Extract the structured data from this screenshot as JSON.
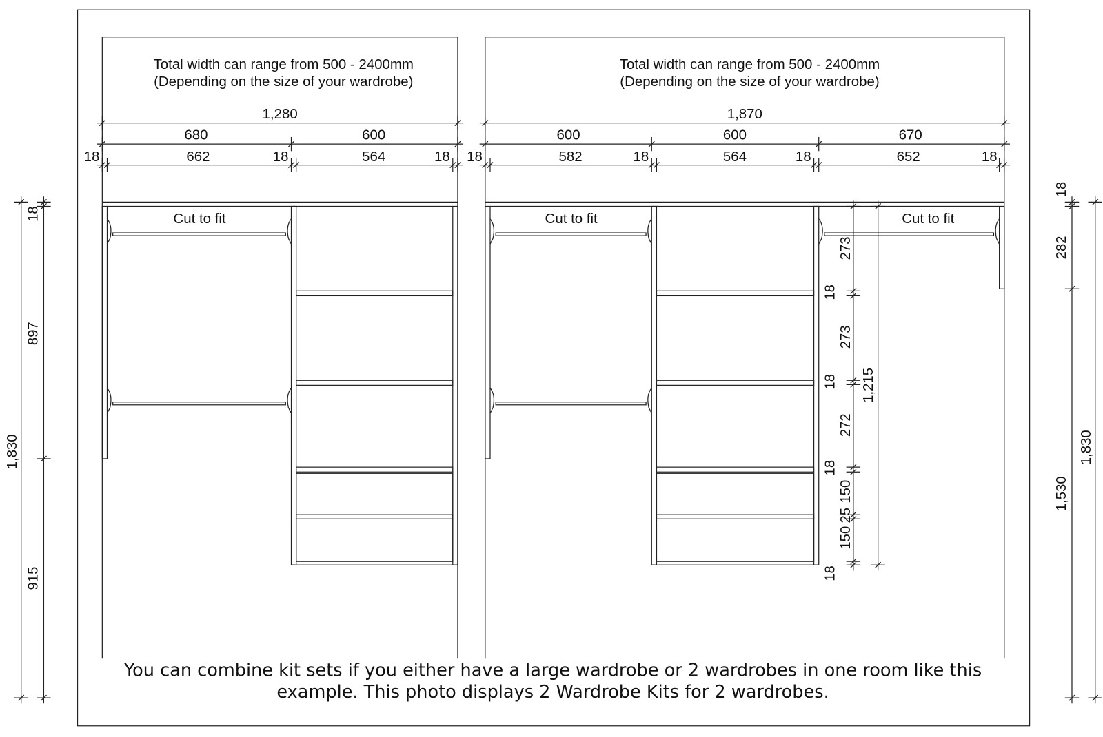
{
  "left": {
    "header": [
      "Total width can range from 500 - 2400mm",
      "(Depending on the size of your wardrobe)"
    ],
    "total": "1,280",
    "bays": [
      "680",
      "600"
    ],
    "parts": [
      "18",
      "662",
      "18",
      "564",
      "18"
    ],
    "label": "Cut to fit"
  },
  "right": {
    "header": [
      "Total width can range from 500 - 2400mm",
      "(Depending on the size of your wardrobe)"
    ],
    "total": "1,870",
    "bays": [
      "600",
      "600",
      "670"
    ],
    "parts": [
      "18",
      "582",
      "18",
      "564",
      "18",
      "652",
      "18"
    ],
    "labels": [
      "Cut to fit",
      "Cut to fit"
    ]
  },
  "shelf_dims": [
    "273",
    "18",
    "273",
    "18",
    "272",
    "18",
    "150",
    "25",
    "150",
    "18"
  ],
  "shelf_total": "1,215",
  "left_side": {
    "parts": [
      "18",
      "897",
      "915"
    ],
    "total": "1,830"
  },
  "right_side": {
    "parts": [
      "18",
      "282",
      "1,530"
    ],
    "total": "1,830"
  },
  "caption": [
    "You can combine kit sets if you either have a large wardrobe or 2 wardrobes in one room like this",
    "example. This photo displays 2 Wardrobe Kits for 2 wardrobes."
  ]
}
